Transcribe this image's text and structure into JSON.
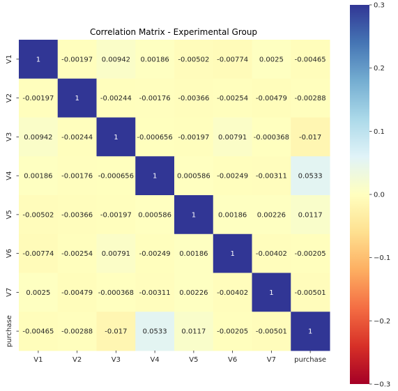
{
  "chart_data": {
    "type": "heatmap",
    "title": "Correlation Matrix - Experimental Group",
    "xlabel": "",
    "ylabel": "",
    "labels": [
      "V1",
      "V2",
      "V3",
      "V4",
      "V5",
      "V6",
      "V7",
      "purchase"
    ],
    "values": [
      [
        1,
        -0.00197,
        0.00942,
        0.00186,
        -0.00502,
        -0.00774,
        0.0025,
        -0.00465
      ],
      [
        -0.00197,
        1,
        -0.00244,
        -0.00176,
        -0.00366,
        -0.00254,
        -0.00479,
        -0.00288
      ],
      [
        0.00942,
        -0.00244,
        1,
        -0.000656,
        -0.00197,
        0.00791,
        -0.000368,
        -0.017
      ],
      [
        0.00186,
        -0.00176,
        -0.000656,
        1,
        0.000586,
        -0.00249,
        -0.00311,
        0.0533
      ],
      [
        -0.00502,
        -0.00366,
        -0.00197,
        0.000586,
        1,
        0.00186,
        0.00226,
        0.0117
      ],
      [
        -0.00774,
        -0.00254,
        0.00791,
        -0.00249,
        0.00186,
        1,
        -0.00402,
        -0.00205
      ],
      [
        0.0025,
        -0.00479,
        -0.000368,
        -0.00311,
        0.00226,
        -0.00402,
        1,
        -0.00501
      ],
      [
        -0.00465,
        -0.00288,
        -0.017,
        0.0533,
        0.0117,
        -0.00205,
        -0.00501,
        1
      ]
    ],
    "cell_labels": [
      [
        "1",
        "-0.00197",
        "0.00942",
        "0.00186",
        "-0.00502",
        "-0.00774",
        "0.0025",
        "-0.00465"
      ],
      [
        "-0.00197",
        "1",
        "-0.00244",
        "-0.00176",
        "-0.00366",
        "-0.00254",
        "-0.00479",
        "-0.00288"
      ],
      [
        "0.00942",
        "-0.00244",
        "1",
        "-0.000656",
        "-0.00197",
        "0.00791",
        "-0.000368",
        "-0.017"
      ],
      [
        "0.00186",
        "-0.00176",
        "-0.000656",
        "1",
        "0.000586",
        "-0.00249",
        "-0.00311",
        "0.0533"
      ],
      [
        "-0.00502",
        "-0.00366",
        "-0.00197",
        "0.000586",
        "1",
        "0.00186",
        "0.00226",
        "0.0117"
      ],
      [
        "-0.00774",
        "-0.00254",
        "0.00791",
        "-0.00249",
        "0.00186",
        "1",
        "-0.00402",
        "-0.00205"
      ],
      [
        "0.0025",
        "-0.00479",
        "-0.000368",
        "-0.00311",
        "0.00226",
        "-0.00402",
        "1",
        "-0.00501"
      ],
      [
        "-0.00465",
        "-0.00288",
        "-0.017",
        "0.0533",
        "0.0117",
        "-0.00205",
        "-0.00501",
        "1"
      ]
    ],
    "colorscale": "RdYlBu",
    "vmin": -0.3,
    "vmax": 0.3,
    "colorbar_ticks": [
      0.3,
      0.2,
      0.1,
      0.0,
      -0.1,
      -0.2,
      -0.3
    ],
    "colorbar_tick_labels": [
      "0.3",
      "0.2",
      "0.1",
      "0.0",
      "−0.1",
      "−0.2",
      "−0.3"
    ],
    "colorbar_placement": "right",
    "grid": false
  }
}
